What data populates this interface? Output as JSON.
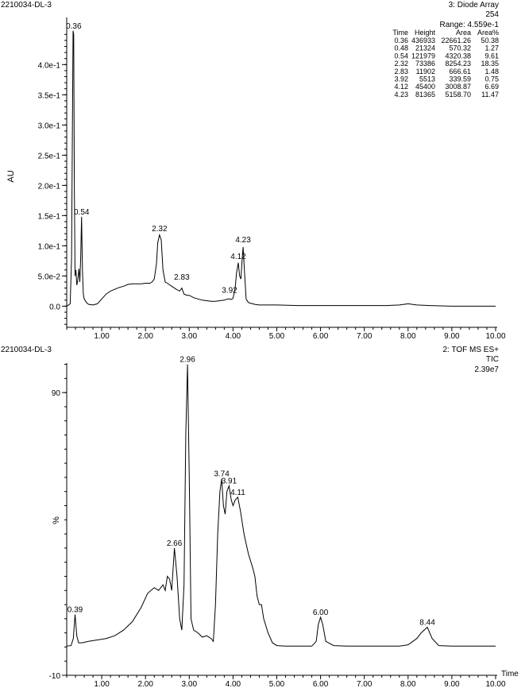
{
  "chart_data": [
    {
      "type": "line",
      "sample_name": "2210034-DL-3",
      "header": [
        "3: Diode Array",
        "254",
        "Range: 4.559e-1"
      ],
      "ylabel": "AU",
      "xlim": [
        0.2,
        10.0
      ],
      "ylim": [
        -0.035,
        0.478
      ],
      "xticks": [
        "1.00",
        "2.00",
        "3.00",
        "4.00",
        "5.00",
        "6.00",
        "7.00",
        "8.00",
        "9.00",
        "10.00"
      ],
      "yticks": [
        {
          "value": 0.0,
          "label": "0.0"
        },
        {
          "value": 0.05,
          "label": "5.0e-2"
        },
        {
          "value": 0.1,
          "label": "1.0e-1"
        },
        {
          "value": 0.15,
          "label": "1.5e-1"
        },
        {
          "value": 0.2,
          "label": "2.0e-1"
        },
        {
          "value": 0.25,
          "label": "2.5e-1"
        },
        {
          "value": 0.3,
          "label": "3.0e-1"
        },
        {
          "value": 0.35,
          "label": "3.5e-1"
        },
        {
          "value": 0.4,
          "label": "4.0e-1"
        }
      ],
      "peak_table": {
        "columns": [
          "Time",
          "Height",
          "Area",
          "Area%"
        ],
        "rows": [
          [
            "0.36",
            "436933",
            "22661.26",
            "50.38"
          ],
          [
            "0.48",
            "21324",
            "570.32",
            "1.27"
          ],
          [
            "0.54",
            "121979",
            "4320.38",
            "9.61"
          ],
          [
            "2.32",
            "73386",
            "8254.23",
            "18.35"
          ],
          [
            "2.83",
            "11902",
            "666.61",
            "1.48"
          ],
          [
            "3.92",
            "5513",
            "339.59",
            "0.75"
          ],
          [
            "4.12",
            "45400",
            "3008.87",
            "6.69"
          ],
          [
            "4.23",
            "81365",
            "5158.70",
            "11.47"
          ]
        ]
      },
      "peak_labels": [
        {
          "label": "0.36",
          "x": 0.36,
          "y": 0.4559
        },
        {
          "label": "0.54",
          "x": 0.54,
          "y": 0.148
        },
        {
          "label": "2.32",
          "x": 2.32,
          "y": 0.12
        },
        {
          "label": "2.83",
          "x": 2.83,
          "y": 0.04
        },
        {
          "label": "3.92",
          "x": 3.92,
          "y": 0.018
        },
        {
          "label": "4.12",
          "x": 4.12,
          "y": 0.074
        },
        {
          "label": "4.23",
          "x": 4.23,
          "y": 0.102
        }
      ],
      "x": [
        0.2,
        0.28,
        0.31,
        0.33,
        0.345,
        0.36,
        0.375,
        0.39,
        0.41,
        0.43,
        0.45,
        0.48,
        0.5,
        0.52,
        0.54,
        0.56,
        0.58,
        0.6,
        0.65,
        0.7,
        0.8,
        0.9,
        1.0,
        1.1,
        1.2,
        1.3,
        1.4,
        1.5,
        1.6,
        1.7,
        1.8,
        1.9,
        2.0,
        2.1,
        2.15,
        2.2,
        2.25,
        2.28,
        2.32,
        2.36,
        2.4,
        2.45,
        2.5,
        2.6,
        2.7,
        2.78,
        2.83,
        2.88,
        2.95,
        3.0,
        3.1,
        3.2,
        3.3,
        3.4,
        3.5,
        3.6,
        3.7,
        3.8,
        3.88,
        3.92,
        3.96,
        4.0,
        4.05,
        4.08,
        4.12,
        4.15,
        4.18,
        4.21,
        4.23,
        4.26,
        4.3,
        4.35,
        4.4,
        4.5,
        4.6,
        4.8,
        5.0,
        5.5,
        6.0,
        6.5,
        7.0,
        7.5,
        7.8,
        8.0,
        8.2,
        8.5,
        9.0,
        9.5,
        10.0
      ],
      "y": [
        0.0,
        0.004,
        0.08,
        0.3,
        0.456,
        0.45,
        0.2,
        0.05,
        0.06,
        0.035,
        0.042,
        0.062,
        0.04,
        0.08,
        0.148,
        0.06,
        0.02,
        0.012,
        0.006,
        0.003,
        0.002,
        0.004,
        0.012,
        0.02,
        0.025,
        0.028,
        0.031,
        0.033,
        0.036,
        0.037,
        0.037,
        0.037,
        0.038,
        0.038,
        0.04,
        0.045,
        0.07,
        0.105,
        0.118,
        0.11,
        0.06,
        0.04,
        0.038,
        0.033,
        0.028,
        0.025,
        0.03,
        0.02,
        0.018,
        0.018,
        0.014,
        0.012,
        0.01,
        0.009,
        0.008,
        0.008,
        0.009,
        0.01,
        0.012,
        0.012,
        0.011,
        0.013,
        0.03,
        0.055,
        0.072,
        0.05,
        0.045,
        0.08,
        0.098,
        0.06,
        0.012,
        0.006,
        0.005,
        0.003,
        0.002,
        0.002,
        0.002,
        0.001,
        0.001,
        0.001,
        0.001,
        0.001,
        0.002,
        0.004,
        0.002,
        0.001,
        0.0,
        0.0,
        0.0
      ]
    },
    {
      "type": "line",
      "sample_name": "2210034-DL-3",
      "header": [
        "2: TOF MS ES+",
        "TIC",
        "2.39e7"
      ],
      "ylabel": "%",
      "xlabel": "Time",
      "xlim": [
        0.2,
        10.0
      ],
      "ylim": [
        -10,
        101
      ],
      "xticks": [
        "1.00",
        "2.00",
        "3.00",
        "4.00",
        "5.00",
        "6.00",
        "7.00",
        "8.00",
        "9.00",
        "10.00"
      ],
      "yticks": [
        {
          "value": 90,
          "label": "90"
        },
        {
          "value": -10,
          "label": "-10"
        }
      ],
      "peak_labels": [
        {
          "label": "0.39",
          "x": 0.39,
          "y": 11.5
        },
        {
          "label": "2.66",
          "x": 2.66,
          "y": 35
        },
        {
          "label": "2.96",
          "x": 2.96,
          "y": 100
        },
        {
          "label": "3.74",
          "x": 3.74,
          "y": 59.5
        },
        {
          "label": "3.91",
          "x": 3.91,
          "y": 57
        },
        {
          "label": "4.11",
          "x": 4.11,
          "y": 53
        },
        {
          "label": "6.00",
          "x": 6.0,
          "y": 10.5
        },
        {
          "label": "8.44",
          "x": 8.44,
          "y": 7
        }
      ],
      "x": [
        0.2,
        0.3,
        0.35,
        0.39,
        0.43,
        0.47,
        0.55,
        0.7,
        0.9,
        1.1,
        1.3,
        1.5,
        1.7,
        1.9,
        2.05,
        2.2,
        2.3,
        2.4,
        2.45,
        2.5,
        2.55,
        2.6,
        2.66,
        2.72,
        2.78,
        2.83,
        2.88,
        2.92,
        2.96,
        3.0,
        3.04,
        3.1,
        3.2,
        3.3,
        3.4,
        3.5,
        3.55,
        3.6,
        3.65,
        3.7,
        3.74,
        3.78,
        3.82,
        3.86,
        3.91,
        3.96,
        4.0,
        4.05,
        4.11,
        4.17,
        4.25,
        4.35,
        4.45,
        4.5,
        4.55,
        4.6,
        4.65,
        4.7,
        4.8,
        4.9,
        5.0,
        5.2,
        5.5,
        5.8,
        5.9,
        5.95,
        6.0,
        6.05,
        6.12,
        6.3,
        6.6,
        7.0,
        7.5,
        7.8,
        8.0,
        8.2,
        8.3,
        8.44,
        8.55,
        8.7,
        9.0,
        9.5,
        10.0
      ],
      "y": [
        0.3,
        0.5,
        3,
        11.5,
        4,
        1.5,
        1.5,
        2,
        2.5,
        3,
        4,
        6,
        9,
        14,
        19,
        21,
        20,
        22,
        20,
        25,
        24,
        20,
        35,
        25,
        10,
        6,
        22,
        75,
        100,
        60,
        10,
        6,
        5,
        3.5,
        4,
        3,
        2,
        15,
        40,
        55,
        59.5,
        50,
        47,
        55,
        57,
        52,
        50,
        52,
        53,
        48,
        40,
        33,
        28,
        25,
        18,
        15,
        15,
        10,
        5,
        1.5,
        0.5,
        0.3,
        0.3,
        0.3,
        2,
        8,
        10.5,
        8,
        2,
        0.5,
        0.3,
        0.3,
        0.3,
        0.3,
        0.8,
        3,
        5,
        7,
        3,
        0.5,
        0.3,
        0.3,
        0.3
      ]
    }
  ]
}
